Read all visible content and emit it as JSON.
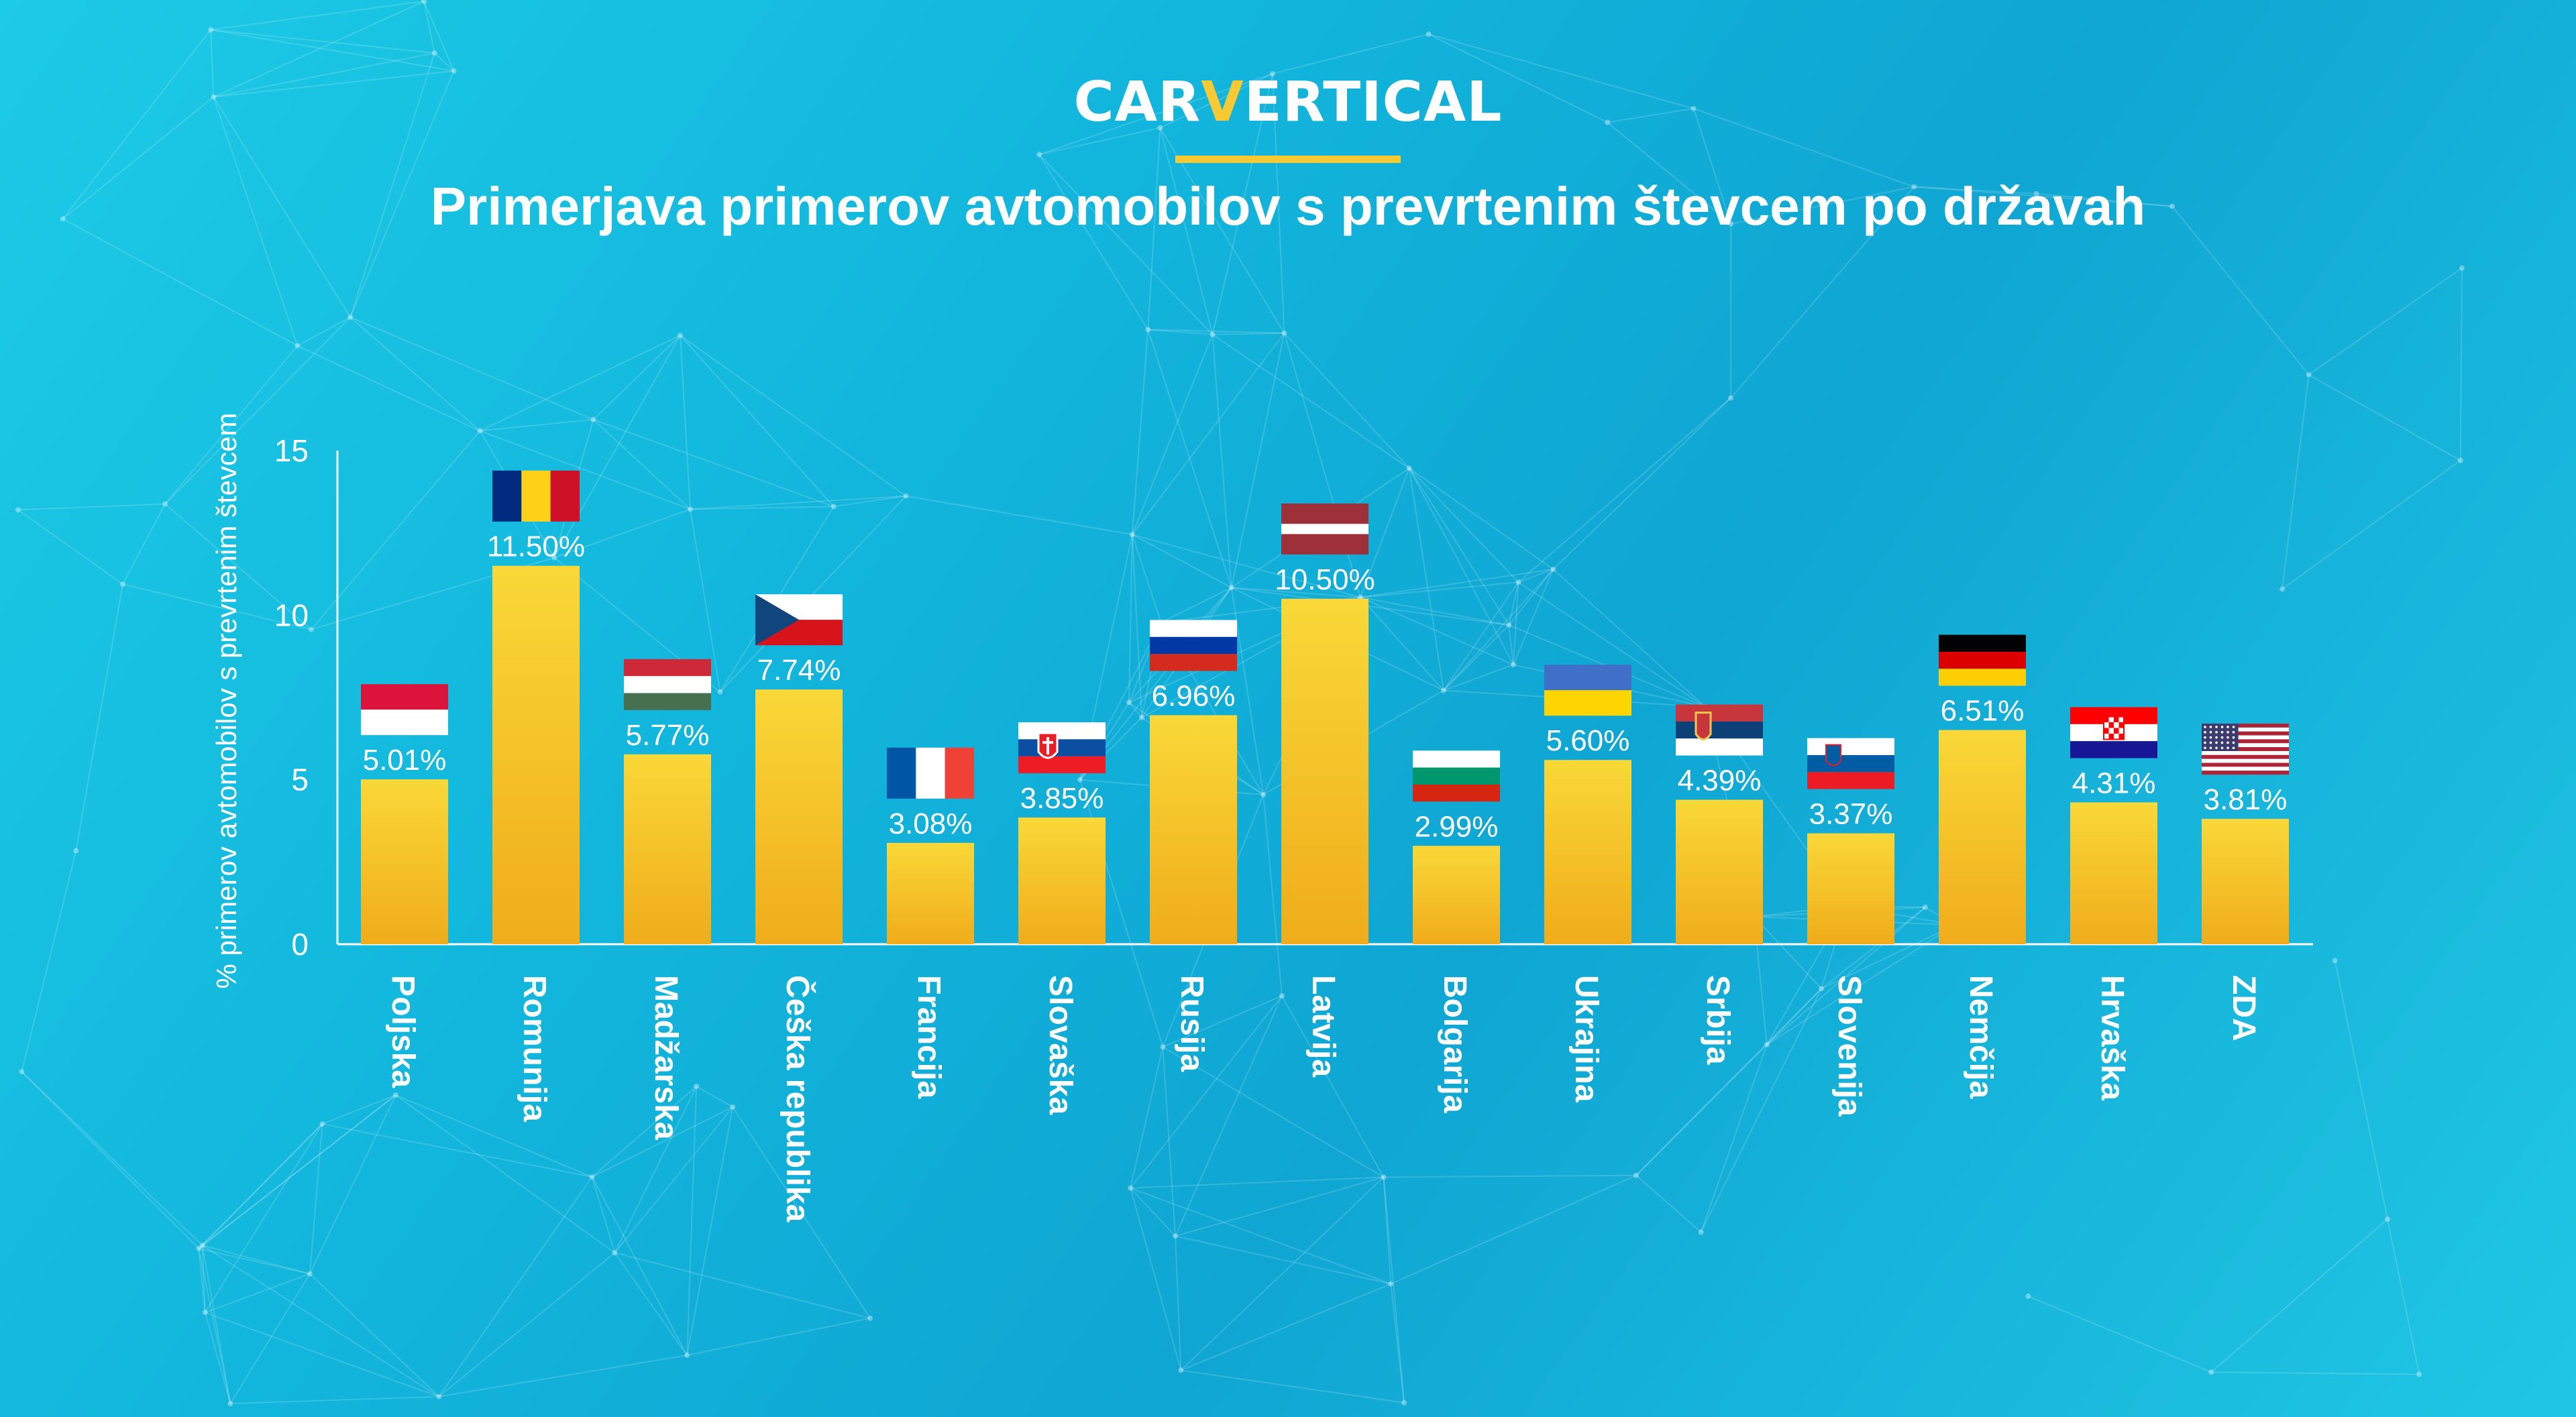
{
  "brand": {
    "logo_prefix": "CAR",
    "logo_accent": "V",
    "logo_suffix": "ERTICAL"
  },
  "colors": {
    "bar_top": "#f9d838",
    "bar_bottom": "#f0ac1b",
    "axis": "#ffffff",
    "accent": "#f7c932"
  },
  "chart_data": {
    "type": "bar",
    "title": "Primerjava primerov avtomobilov s prevrtenim števcem po državah",
    "xlabel": "",
    "ylabel": "% primerov avtomobilov s prevrtenim števcem",
    "ylim": [
      0,
      15
    ],
    "yticks": [
      0,
      5,
      10,
      15
    ],
    "grid": false,
    "categories": [
      "Poljska",
      "Romunija",
      "Madžarska",
      "Češka republika",
      "Francija",
      "Slovaška",
      "Rusija",
      "Latvija",
      "Bolgarija",
      "Ukrajina",
      "Srbija",
      "Slovenija",
      "Nemčija",
      "Hrvaška",
      "ZDA"
    ],
    "values": [
      5.01,
      11.5,
      5.77,
      7.74,
      3.08,
      3.85,
      6.96,
      10.5,
      2.99,
      5.6,
      4.39,
      3.37,
      6.51,
      4.31,
      3.81
    ],
    "value_labels": [
      "5.01%",
      "11.50%",
      "5.77%",
      "7.74%",
      "3.08%",
      "3.85%",
      "6.96%",
      "10.50%",
      "2.99%",
      "5.60%",
      "4.39%",
      "3.37%",
      "6.51%",
      "4.31%",
      "3.81%"
    ],
    "flags": [
      "poland-flag-icon",
      "romania-flag-icon",
      "hungary-flag-icon",
      "czech-flag-icon",
      "france-flag-icon",
      "slovakia-flag-icon",
      "russia-flag-icon",
      "latvia-flag-icon",
      "bulgaria-flag-icon",
      "ukraine-flag-icon",
      "serbia-flag-icon",
      "slovenia-flag-icon",
      "germany-flag-icon",
      "croatia-flag-icon",
      "usa-flag-icon"
    ]
  }
}
